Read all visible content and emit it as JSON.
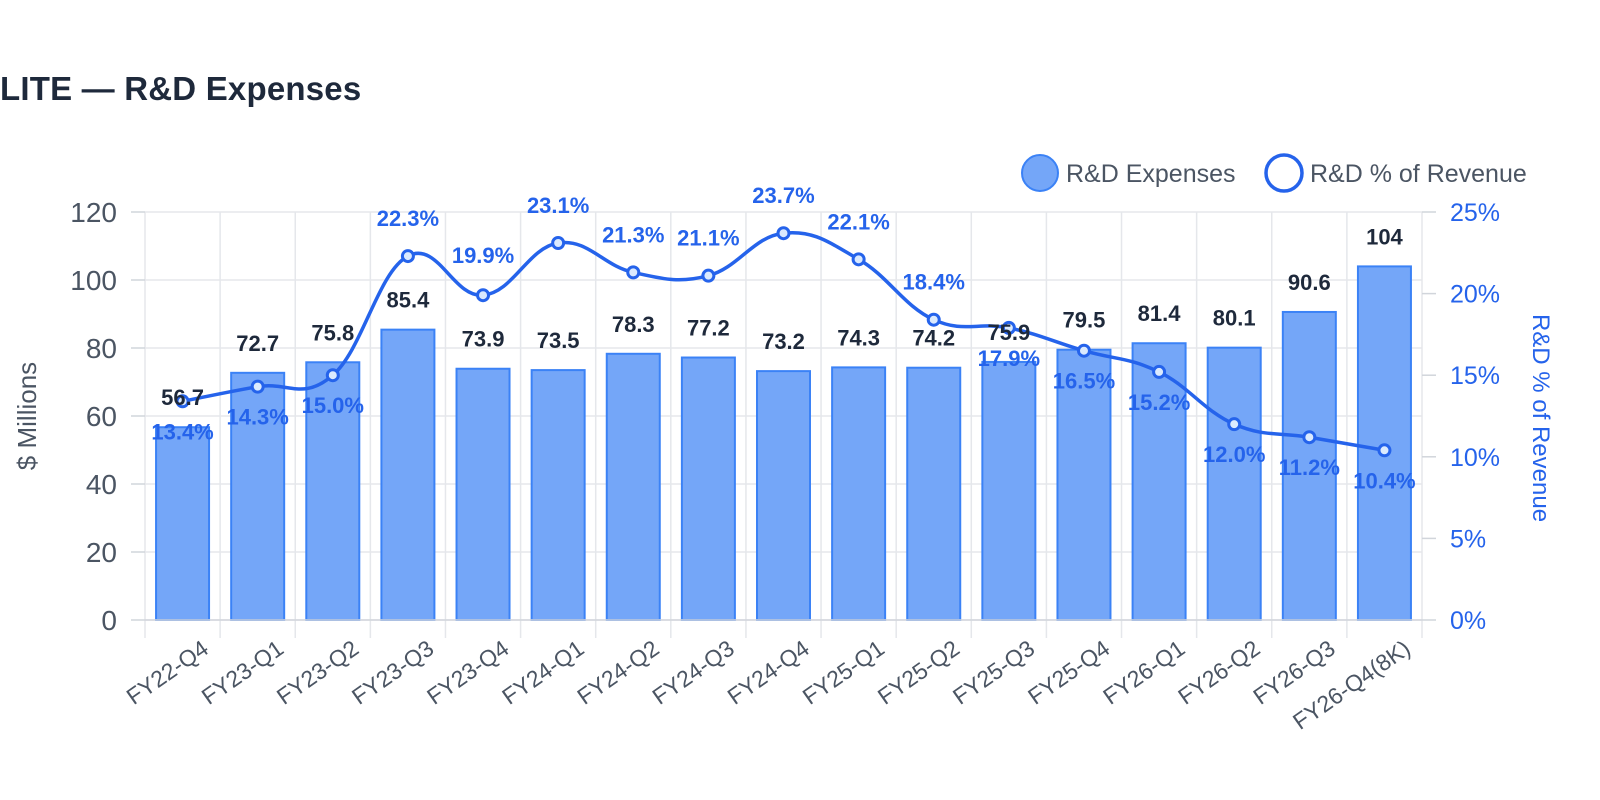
{
  "chart_data": {
    "type": "bar",
    "title": "LITE — R&D Expenses",
    "categories": [
      "FY22-Q4",
      "FY23-Q1",
      "FY23-Q2",
      "FY23-Q3",
      "FY23-Q4",
      "FY24-Q1",
      "FY24-Q2",
      "FY24-Q3",
      "FY24-Q4",
      "FY25-Q1",
      "FY25-Q2",
      "FY25-Q3",
      "FY25-Q4",
      "FY26-Q1",
      "FY26-Q2",
      "FY26-Q3",
      "FY26-Q4(8K)"
    ],
    "series": [
      {
        "name": "R&D Expenses",
        "type": "bar",
        "axis": "left",
        "values": [
          56.7,
          72.7,
          75.8,
          85.4,
          73.9,
          73.5,
          78.3,
          77.2,
          73.2,
          74.3,
          74.2,
          75.9,
          79.5,
          81.4,
          80.1,
          90.6,
          104
        ],
        "labels": [
          "56.7",
          "72.7",
          "75.8",
          "85.4",
          "73.9",
          "73.5",
          "78.3",
          "77.2",
          "73.2",
          "74.3",
          "74.2",
          "75.9",
          "79.5",
          "81.4",
          "80.1",
          "90.6",
          "104"
        ]
      },
      {
        "name": "R&D % of Revenue",
        "type": "line",
        "axis": "right",
        "values": [
          13.4,
          14.3,
          15.0,
          22.3,
          19.9,
          23.1,
          21.3,
          21.1,
          23.7,
          22.1,
          18.4,
          17.9,
          16.5,
          15.2,
          12.0,
          11.2,
          10.4
        ],
        "labels": [
          "13.4%",
          "14.3%",
          "15.0%",
          "22.3%",
          "19.9%",
          "23.1%",
          "21.3%",
          "21.1%",
          "23.7%",
          "22.1%",
          "18.4%",
          "17.9%",
          "16.5%",
          "15.2%",
          "12.0%",
          "11.2%",
          "10.4%"
        ]
      }
    ],
    "ylabel": "$ Millions",
    "ylabel_right": "R&D % of Revenue",
    "ylim": [
      0,
      120
    ],
    "ylim_right": [
      0,
      25
    ],
    "yticks": [
      "0",
      "20",
      "40",
      "60",
      "80",
      "100",
      "120"
    ],
    "yticks_right": [
      "0%",
      "5%",
      "10%",
      "15%",
      "20%",
      "25%"
    ],
    "grid": true,
    "legend_position": "top-right",
    "colors": {
      "bar_fill": "#74a6f8",
      "bar_stroke": "#3b82f6",
      "line": "#2563eb"
    }
  }
}
